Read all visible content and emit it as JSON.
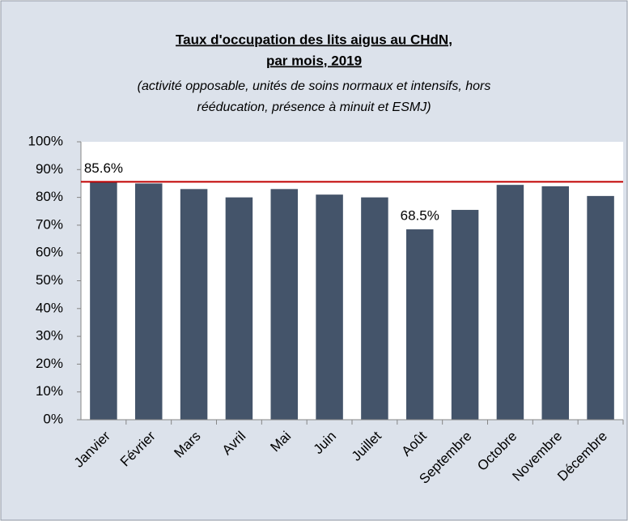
{
  "chart_data": {
    "type": "bar",
    "title": [
      "Taux d'occupation des lits aigus au CHdN,",
      "par mois, 2019"
    ],
    "subtitle": [
      "(activité opposable, unités de soins normaux et intensifs, hors",
      "rééducation, présence à minuit et ESMJ)"
    ],
    "categories": [
      "Janvier",
      "Février",
      "Mars",
      "Avril",
      "Mai",
      "Juin",
      "Juillet",
      "Août",
      "Septembre",
      "Octobre",
      "Novembre",
      "Décembre"
    ],
    "values": [
      85.6,
      85,
      83,
      80,
      83,
      81,
      80,
      68.5,
      75.5,
      84.5,
      84,
      80.5
    ],
    "value_labels": [
      "85.6%",
      null,
      null,
      null,
      null,
      null,
      null,
      "68.5%",
      null,
      null,
      null,
      null
    ],
    "color": "#44546a",
    "reference_line": {
      "value": 85.6,
      "color": "#c00000"
    },
    "ylim": [
      0,
      100
    ],
    "yticks": [
      {
        "value": 0,
        "label": "0%"
      },
      {
        "value": 10,
        "label": "10%"
      },
      {
        "value": 20,
        "label": "20%"
      },
      {
        "value": 30,
        "label": "30%"
      },
      {
        "value": 40,
        "label": "40%"
      },
      {
        "value": 50,
        "label": "50%"
      },
      {
        "value": 60,
        "label": "60%"
      },
      {
        "value": 70,
        "label": "70%"
      },
      {
        "value": 80,
        "label": "80%"
      },
      {
        "value": 90,
        "label": "90%"
      },
      {
        "value": 100,
        "label": "100%"
      }
    ],
    "grid": false
  }
}
